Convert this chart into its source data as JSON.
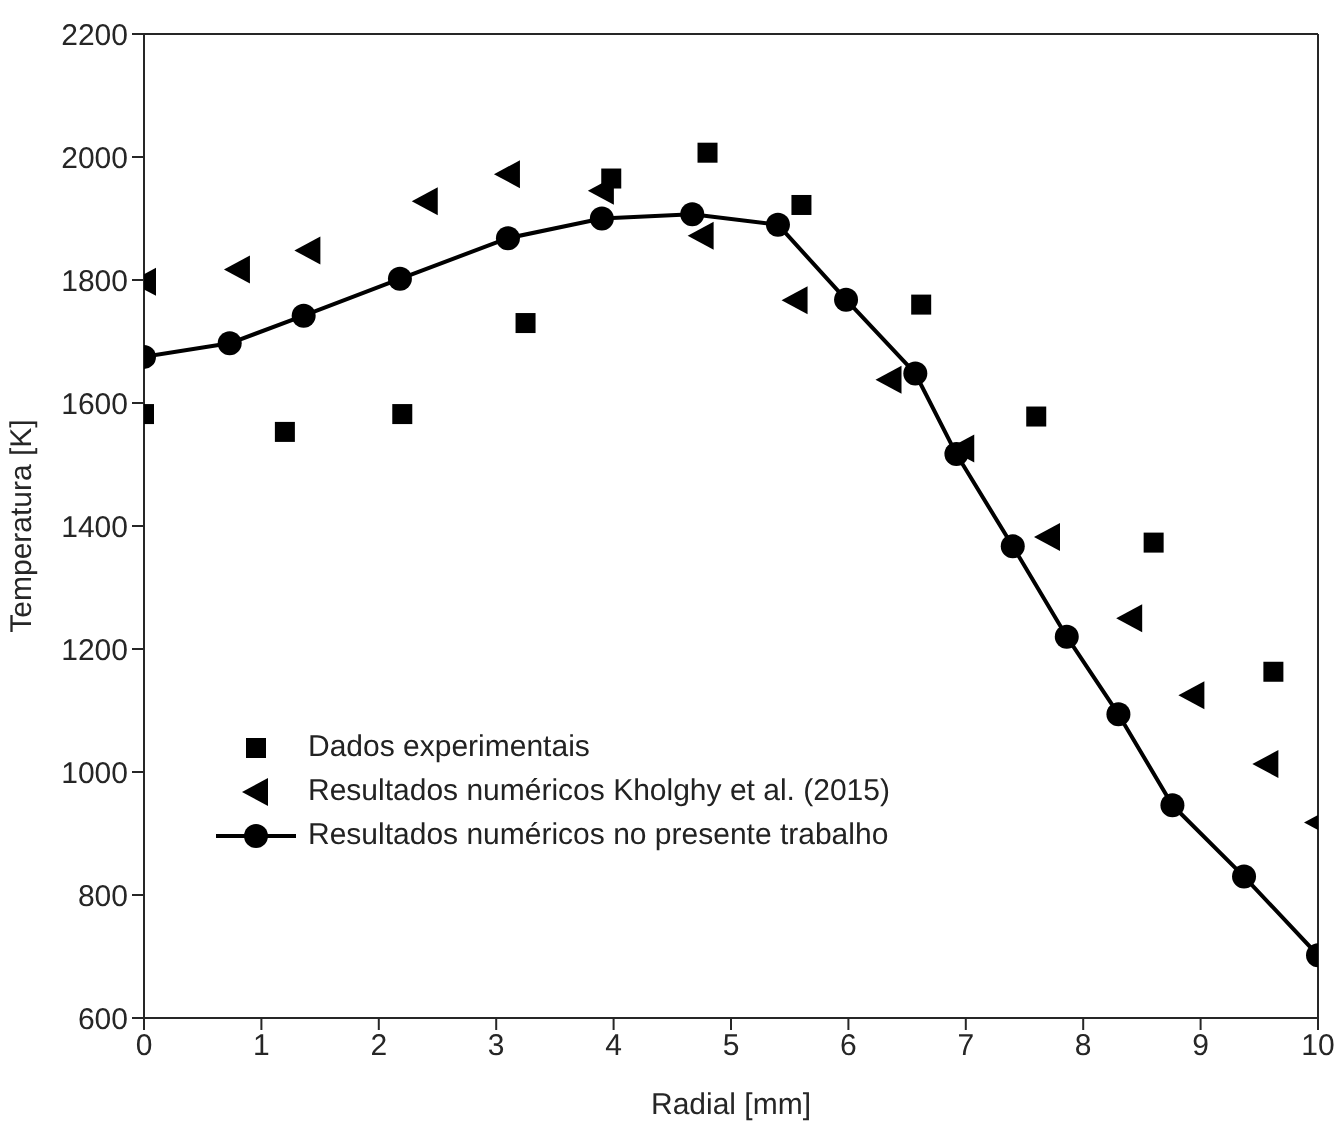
{
  "chart_data": {
    "type": "scatter",
    "xlabel": "Radial [mm]",
    "ylabel": "Temperatura [K]",
    "xlim": [
      0,
      10
    ],
    "xticks": [
      0,
      1,
      2,
      3,
      4,
      5,
      6,
      7,
      8,
      9,
      10
    ],
    "ylim": [
      600,
      2200
    ],
    "yticks": [
      600,
      800,
      1000,
      1200,
      1400,
      1600,
      1800,
      2000,
      2200
    ],
    "grid": false,
    "legend": "bottom left",
    "series": [
      {
        "name": "Dados experimentais",
        "marker": "square",
        "color": "#000000",
        "x": [
          0,
          1.2,
          2.2,
          3.25,
          3.98,
          4.8,
          5.6,
          6.62,
          7.6,
          8.6,
          9.62
        ],
        "values": [
          1582,
          1553,
          1582,
          1730,
          1965,
          2007,
          1922,
          1760,
          1578,
          1373,
          1163
        ]
      },
      {
        "name": "Resultados numéricos Kholghy et al. (2015)",
        "marker": "triangle",
        "color": "#000000",
        "x": [
          0,
          0.8,
          1.4,
          2.4,
          3.1,
          3.9,
          4.75,
          5.55,
          6.35,
          6.97,
          7.7,
          8.4,
          8.93,
          9.56,
          10
        ],
        "values": [
          1797,
          1817,
          1848,
          1928,
          1972,
          1945,
          1872,
          1767,
          1638,
          1526,
          1382,
          1250,
          1125,
          1013,
          918
        ]
      },
      {
        "name": "Resultados numéricos no presente trabalho",
        "type": "line",
        "marker": "circle",
        "line_style": "solid",
        "color": "#000000",
        "x": [
          0,
          0.73,
          1.36,
          2.18,
          3.1,
          3.9,
          4.67,
          5.4,
          5.98,
          6.57,
          6.92,
          7.4,
          7.86,
          8.3,
          8.76,
          9.37,
          10
        ],
        "values": [
          1675,
          1697,
          1742,
          1802,
          1868,
          1900,
          1907,
          1890,
          1768,
          1648,
          1517,
          1367,
          1220,
          1094,
          946,
          830,
          702
        ]
      }
    ]
  }
}
